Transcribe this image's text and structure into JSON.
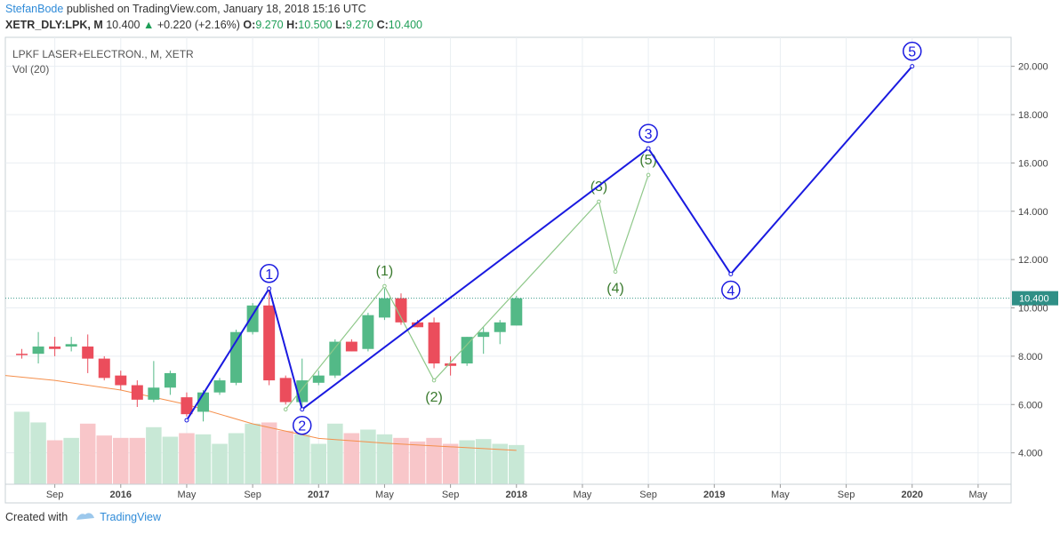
{
  "header": {
    "author": "StefanBode",
    "published": "published on TradingView.com, January 18, 2018 15:16 UTC",
    "symbol": "XETR_DLY:LPK, M",
    "last": "10.400",
    "change": "+0.220 (+2.16%)",
    "o_label": "O:",
    "o_value": "9.270",
    "h_label": "H:",
    "h_value": "10.500",
    "l_label": "L:",
    "l_value": "9.270",
    "c_label": "C:",
    "c_value": "10.400"
  },
  "legend": {
    "title": "LPKF LASER+ELECTRON., M, XETR",
    "volume": "Vol (20)"
  },
  "footer": {
    "created_with": "Created with",
    "brand": "TradingView"
  },
  "colors": {
    "up": "#53b987",
    "down": "#eb4d5c",
    "vol_up": "#c8e8d6",
    "vol_down": "#f8c6c9",
    "wave_primary": "#1a1ae0",
    "wave_minor": "#8fc88a",
    "wave_minor_label": "#3a7a2e",
    "ma_line": "#f58f4b",
    "price_line": "#3a9a8a",
    "price_label_bg": "#2f8f86",
    "grid": "#e9eef2"
  },
  "chart_data": {
    "type": "candlestick",
    "title": "LPKF LASER+ELECTRON., M, XETR",
    "y_axis": {
      "ticks": [
        4,
        6,
        8,
        10,
        12,
        14,
        16,
        18,
        20
      ],
      "range": [
        2.7,
        21.2
      ],
      "side": "right"
    },
    "x_axis": {
      "ticks": [
        {
          "x": "2015-09",
          "label": "Sep"
        },
        {
          "x": "2016-01",
          "label": "2016"
        },
        {
          "x": "2016-05",
          "label": "May"
        },
        {
          "x": "2016-09",
          "label": "Sep"
        },
        {
          "x": "2017-01",
          "label": "2017"
        },
        {
          "x": "2017-05",
          "label": "May"
        },
        {
          "x": "2017-09",
          "label": "Sep"
        },
        {
          "x": "2018-01",
          "label": "2018"
        },
        {
          "x": "2018-05",
          "label": "May"
        },
        {
          "x": "2018-09",
          "label": "Sep"
        },
        {
          "x": "2019-01",
          "label": "2019"
        },
        {
          "x": "2019-05",
          "label": "May"
        },
        {
          "x": "2019-09",
          "label": "Sep"
        },
        {
          "x": "2020-01",
          "label": "2020"
        },
        {
          "x": "2020-05",
          "label": "May"
        }
      ],
      "range": [
        "2015-06",
        "2020-07"
      ]
    },
    "last_price": 10.4,
    "last_price_label": "10.400",
    "candles": [
      {
        "m": "2015-07",
        "o": 8.1,
        "h": 8.3,
        "l": 7.9,
        "c": 8.05
      },
      {
        "m": "2015-08",
        "o": 8.1,
        "h": 9.0,
        "l": 7.7,
        "c": 8.4
      },
      {
        "m": "2015-09",
        "o": 8.4,
        "h": 8.8,
        "l": 8.0,
        "c": 8.3
      },
      {
        "m": "2015-10",
        "o": 8.4,
        "h": 8.8,
        "l": 8.2,
        "c": 8.5
      },
      {
        "m": "2015-11",
        "o": 8.4,
        "h": 8.9,
        "l": 7.3,
        "c": 7.9
      },
      {
        "m": "2015-12",
        "o": 7.9,
        "h": 8.0,
        "l": 7.0,
        "c": 7.1
      },
      {
        "m": "2016-01",
        "o": 7.2,
        "h": 7.4,
        "l": 6.6,
        "c": 6.8
      },
      {
        "m": "2016-02",
        "o": 6.8,
        "h": 7.0,
        "l": 5.9,
        "c": 6.2
      },
      {
        "m": "2016-03",
        "o": 6.2,
        "h": 7.8,
        "l": 6.1,
        "c": 6.7
      },
      {
        "m": "2016-04",
        "o": 6.7,
        "h": 7.4,
        "l": 6.4,
        "c": 7.3
      },
      {
        "m": "2016-05",
        "o": 6.3,
        "h": 6.5,
        "l": 5.5,
        "c": 5.6
      },
      {
        "m": "2016-06",
        "o": 5.7,
        "h": 6.6,
        "l": 5.3,
        "c": 6.5
      },
      {
        "m": "2016-07",
        "o": 6.5,
        "h": 7.1,
        "l": 6.4,
        "c": 7.0
      },
      {
        "m": "2016-08",
        "o": 6.9,
        "h": 9.1,
        "l": 6.8,
        "c": 9.0
      },
      {
        "m": "2016-09",
        "o": 9.0,
        "h": 10.2,
        "l": 8.9,
        "c": 10.1
      },
      {
        "m": "2016-10",
        "o": 10.1,
        "h": 10.8,
        "l": 6.8,
        "c": 7.0
      },
      {
        "m": "2016-11",
        "o": 7.1,
        "h": 7.2,
        "l": 6.0,
        "c": 6.1
      },
      {
        "m": "2016-12",
        "o": 6.1,
        "h": 7.9,
        "l": 5.8,
        "c": 7.0
      },
      {
        "m": "2017-01",
        "o": 6.9,
        "h": 7.4,
        "l": 6.8,
        "c": 7.2
      },
      {
        "m": "2017-02",
        "o": 7.2,
        "h": 8.7,
        "l": 7.1,
        "c": 8.6
      },
      {
        "m": "2017-03",
        "o": 8.6,
        "h": 8.7,
        "l": 8.2,
        "c": 8.2
      },
      {
        "m": "2017-04",
        "o": 8.3,
        "h": 9.8,
        "l": 8.2,
        "c": 9.7
      },
      {
        "m": "2017-05",
        "o": 9.6,
        "h": 10.8,
        "l": 9.5,
        "c": 10.4
      },
      {
        "m": "2017-06",
        "o": 10.4,
        "h": 10.6,
        "l": 9.3,
        "c": 9.4
      },
      {
        "m": "2017-07",
        "o": 9.4,
        "h": 9.5,
        "l": 9.2,
        "c": 9.2
      },
      {
        "m": "2017-08",
        "o": 9.4,
        "h": 9.6,
        "l": 7.5,
        "c": 7.7
      },
      {
        "m": "2017-09",
        "o": 7.7,
        "h": 8.0,
        "l": 7.2,
        "c": 7.6
      },
      {
        "m": "2017-10",
        "o": 7.7,
        "h": 8.8,
        "l": 7.6,
        "c": 8.8
      },
      {
        "m": "2017-11",
        "o": 8.8,
        "h": 9.2,
        "l": 8.1,
        "c": 9.0
      },
      {
        "m": "2017-12",
        "o": 9.0,
        "h": 9.5,
        "l": 8.5,
        "c": 9.4
      },
      {
        "m": "2018-01",
        "o": 9.27,
        "h": 10.5,
        "l": 9.27,
        "c": 10.4
      }
    ],
    "volume": [
      {
        "m": "2015-07",
        "v": 6.1,
        "up": true
      },
      {
        "m": "2015-08",
        "v": 5.2,
        "up": true
      },
      {
        "m": "2015-09",
        "v": 3.7,
        "up": false
      },
      {
        "m": "2015-10",
        "v": 3.9,
        "up": true
      },
      {
        "m": "2015-11",
        "v": 5.1,
        "up": false
      },
      {
        "m": "2015-12",
        "v": 4.1,
        "up": false
      },
      {
        "m": "2016-01",
        "v": 3.9,
        "up": false
      },
      {
        "m": "2016-02",
        "v": 3.9,
        "up": false
      },
      {
        "m": "2016-03",
        "v": 4.8,
        "up": true
      },
      {
        "m": "2016-04",
        "v": 4.0,
        "up": true
      },
      {
        "m": "2016-05",
        "v": 4.3,
        "up": false
      },
      {
        "m": "2016-06",
        "v": 4.2,
        "up": true
      },
      {
        "m": "2016-07",
        "v": 3.4,
        "up": true
      },
      {
        "m": "2016-08",
        "v": 4.3,
        "up": true
      },
      {
        "m": "2016-09",
        "v": 5.1,
        "up": true
      },
      {
        "m": "2016-10",
        "v": 5.2,
        "up": false
      },
      {
        "m": "2016-11",
        "v": 4.5,
        "up": false
      },
      {
        "m": "2016-12",
        "v": 4.2,
        "up": true
      },
      {
        "m": "2017-01",
        "v": 3.4,
        "up": true
      },
      {
        "m": "2017-02",
        "v": 5.1,
        "up": true
      },
      {
        "m": "2017-03",
        "v": 4.3,
        "up": false
      },
      {
        "m": "2017-04",
        "v": 4.6,
        "up": true
      },
      {
        "m": "2017-05",
        "v": 4.2,
        "up": true
      },
      {
        "m": "2017-06",
        "v": 3.9,
        "up": false
      },
      {
        "m": "2017-07",
        "v": 3.6,
        "up": false
      },
      {
        "m": "2017-08",
        "v": 3.9,
        "up": false
      },
      {
        "m": "2017-09",
        "v": 3.4,
        "up": false
      },
      {
        "m": "2017-10",
        "v": 3.7,
        "up": true
      },
      {
        "m": "2017-11",
        "v": 3.8,
        "up": true
      },
      {
        "m": "2017-12",
        "v": 3.4,
        "up": true
      },
      {
        "m": "2018-01",
        "v": 3.3,
        "up": true
      }
    ],
    "moving_average": [
      {
        "m": "2015-06",
        "y": 7.2
      },
      {
        "m": "2015-09",
        "y": 7.0
      },
      {
        "m": "2016-01",
        "y": 6.6
      },
      {
        "m": "2016-05",
        "y": 6.0
      },
      {
        "m": "2016-09",
        "y": 5.2
      },
      {
        "m": "2017-01",
        "y": 4.6
      },
      {
        "m": "2017-05",
        "y": 4.4
      },
      {
        "m": "2017-09",
        "y": 4.25
      },
      {
        "m": "2018-01",
        "y": 4.1
      }
    ],
    "waves_primary": [
      {
        "m": "2016-05",
        "y": 5.35,
        "label": ""
      },
      {
        "m": "2016-10",
        "y": 10.8,
        "label": "1"
      },
      {
        "m": "2016-12",
        "y": 5.8,
        "label": "2"
      },
      {
        "m": "2018-09",
        "y": 16.6,
        "label": "3"
      },
      {
        "m": "2019-02",
        "y": 11.4,
        "label": "4"
      },
      {
        "m": "2020-01",
        "y": 20.0,
        "label": "5"
      }
    ],
    "waves_minor": [
      {
        "m": "2016-11",
        "y": 5.8,
        "label": ""
      },
      {
        "m": "2017-05",
        "y": 10.9,
        "label": "(1)"
      },
      {
        "m": "2017-08",
        "y": 7.0,
        "label": "(2)"
      },
      {
        "m": "2018-06",
        "y": 14.4,
        "label": "(3)"
      },
      {
        "m": "2018-07",
        "y": 11.5,
        "label": "(4)"
      },
      {
        "m": "2018-09",
        "y": 15.5,
        "label": "(5)"
      }
    ]
  }
}
